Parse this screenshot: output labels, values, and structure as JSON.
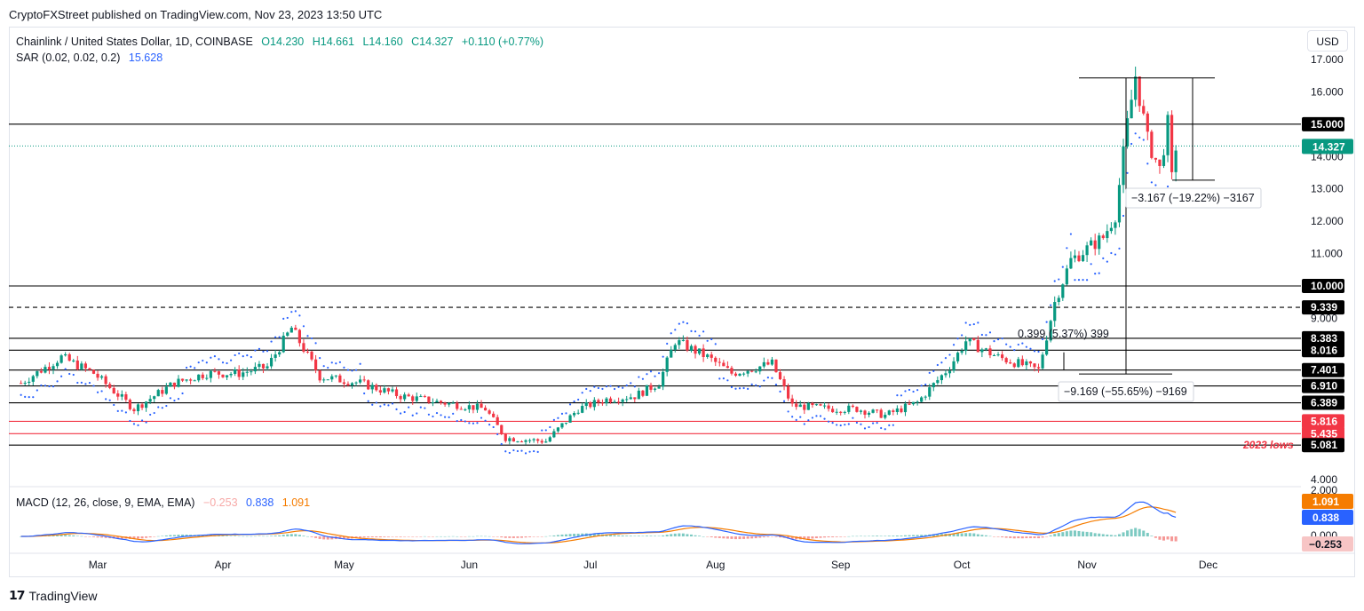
{
  "header": {
    "published": "CryptoFXStreet published on TradingView.com, Nov 23, 2023 13:50 UTC"
  },
  "legend": {
    "symbol": "Chainlink / United States Dollar, 1D, COINBASE",
    "open": "O14.230",
    "high": "H14.661",
    "low": "L14.160",
    "close": "C14.327",
    "change": "+0.110 (+0.77%)",
    "sar_label": "SAR (0.02, 0.02, 0.2)",
    "sar_value": "15.628",
    "macd_label": "MACD (12, 26, close, 9, EMA, EMA)",
    "macd_hist": "−0.253",
    "macd_line": "0.838",
    "macd_signal": "1.091"
  },
  "currency_button": "USD",
  "brand": "TradingView",
  "colors": {
    "up": "#089981",
    "down": "#f23645",
    "sar": "#2962ff",
    "macd_line": "#2962ff",
    "signal_line": "#f57c00",
    "support_red": "#f23645"
  },
  "chart_data": {
    "type": "candlestick",
    "y_axis_ticks": [
      "17.000",
      "16.000",
      "15.000",
      "14.000",
      "13.000",
      "12.000",
      "11.000",
      "10.000",
      "9.000",
      "4.000"
    ],
    "x_axis_labels": [
      "Mar",
      "Apr",
      "May",
      "Jun",
      "Jul",
      "Aug",
      "Sep",
      "Oct",
      "Nov",
      "Dec"
    ],
    "last_price": "14.327",
    "horizontal_levels": [
      {
        "value": 15.0,
        "label": "15.000",
        "style": "solid",
        "color": "#000000"
      },
      {
        "value": 10.0,
        "label": "10.000",
        "style": "solid",
        "color": "#000000"
      },
      {
        "value": 9.339,
        "label": "9.339",
        "style": "dashed",
        "color": "#000000"
      },
      {
        "value": 8.383,
        "label": "8.383",
        "style": "solid",
        "color": "#000000"
      },
      {
        "value": 8.016,
        "label": "8.016",
        "style": "solid",
        "color": "#000000"
      },
      {
        "value": 7.401,
        "label": "7.401",
        "style": "solid",
        "color": "#000000"
      },
      {
        "value": 6.91,
        "label": "6.910",
        "style": "solid",
        "color": "#000000"
      },
      {
        "value": 6.389,
        "label": "6.389",
        "style": "solid",
        "color": "#000000"
      },
      {
        "value": 5.816,
        "label": "5.816",
        "style": "solid",
        "color": "#f23645"
      },
      {
        "value": 5.435,
        "label": "5.435",
        "style": "solid",
        "color": "#f23645"
      },
      {
        "value": 5.081,
        "label": "5.081",
        "style": "solid",
        "color": "#000000"
      }
    ],
    "annotations": {
      "lows_label": "2023 lows",
      "measure_small": "0.399 (5.37%) 399",
      "measure_drop": "−3.167 (−19.22%) −3167",
      "measure_big": "−9.169 (−55.65%) −9169"
    },
    "macd_axis_ticks": [
      "2.000",
      "0.000"
    ],
    "macd_values": {
      "histogram": -0.253,
      "macd": 0.838,
      "signal": 1.091
    },
    "price_path": [
      [
        "2023-02-10",
        7.0
      ],
      [
        "2023-02-20",
        7.8
      ],
      [
        "2023-02-28",
        7.3
      ],
      [
        "2023-03-10",
        6.2
      ],
      [
        "2023-03-20",
        7.0
      ],
      [
        "2023-03-28",
        7.3
      ],
      [
        "2023-04-05",
        7.3
      ],
      [
        "2023-04-12",
        7.5
      ],
      [
        "2023-04-18",
        8.7
      ],
      [
        "2023-04-25",
        7.2
      ],
      [
        "2023-05-05",
        7.0
      ],
      [
        "2023-05-15",
        6.6
      ],
      [
        "2023-05-25",
        6.4
      ],
      [
        "2023-06-05",
        6.2
      ],
      [
        "2023-06-10",
        5.3
      ],
      [
        "2023-06-20",
        5.2
      ],
      [
        "2023-06-28",
        6.2
      ],
      [
        "2023-07-05",
        6.5
      ],
      [
        "2023-07-12",
        6.6
      ],
      [
        "2023-07-18",
        7.0
      ],
      [
        "2023-07-22",
        8.3
      ],
      [
        "2023-07-30",
        7.8
      ],
      [
        "2023-08-05",
        7.3
      ],
      [
        "2023-08-15",
        7.6
      ],
      [
        "2023-08-20",
        6.3
      ],
      [
        "2023-08-30",
        6.2
      ],
      [
        "2023-09-05",
        6.2
      ],
      [
        "2023-09-12",
        6.0
      ],
      [
        "2023-09-20",
        6.4
      ],
      [
        "2023-09-28",
        7.5
      ],
      [
        "2023-10-02",
        8.3
      ],
      [
        "2023-10-10",
        7.8
      ],
      [
        "2023-10-20",
        7.4
      ],
      [
        "2023-10-24",
        9.5
      ],
      [
        "2023-10-28",
        10.8
      ],
      [
        "2023-11-05",
        11.5
      ],
      [
        "2023-11-08",
        12.2
      ],
      [
        "2023-11-11",
        15.0
      ],
      [
        "2023-11-13",
        16.5
      ],
      [
        "2023-11-16",
        14.5
      ],
      [
        "2023-11-19",
        13.6
      ],
      [
        "2023-11-21",
        15.0
      ],
      [
        "2023-11-22",
        13.3
      ],
      [
        "2023-11-23",
        14.327
      ]
    ]
  }
}
